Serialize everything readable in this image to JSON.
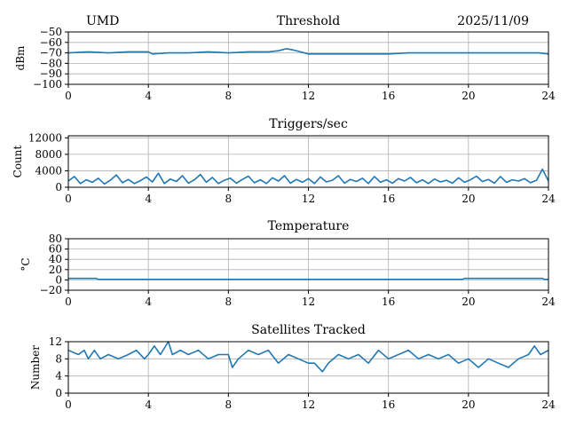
{
  "header": {
    "station": "UMD",
    "date": "2025/11/09"
  },
  "colors": {
    "series": "#1f77b4",
    "grid": "#b0b0b0",
    "axis": "#000000"
  },
  "chart_data": [
    {
      "type": "line",
      "title": "Threshold",
      "ylabel": "dBm",
      "xlim": [
        0,
        24
      ],
      "ylim": [
        -100,
        -50
      ],
      "xticks": [
        0,
        4,
        8,
        12,
        16,
        20,
        24
      ],
      "xtick_labels": [
        "0",
        "4",
        "8",
        "12",
        "16",
        "20",
        "24"
      ],
      "yticks": [
        -50,
        -60,
        -70,
        -80,
        -90,
        -100
      ],
      "ytick_labels": [
        "−50",
        "−60",
        "−70",
        "−80",
        "−90",
        "−100"
      ],
      "grid": true,
      "series": [
        {
          "x": [
            0,
            1,
            2,
            3,
            4,
            4.2,
            5,
            6,
            7,
            8,
            9,
            10,
            10.5,
            10.9,
            11.2,
            11.6,
            12,
            12.5,
            13,
            14,
            15,
            16,
            17,
            18,
            19,
            20,
            21,
            22,
            23,
            23.5,
            24
          ],
          "y": [
            -70,
            -69,
            -70,
            -69,
            -69,
            -71,
            -70,
            -70,
            -69,
            -70,
            -69,
            -69,
            -68,
            -66,
            -67,
            -69,
            -71,
            -71,
            -71,
            -71,
            -71,
            -71,
            -70,
            -70,
            -70,
            -70,
            -70,
            -70,
            -70,
            -70,
            -71
          ]
        }
      ]
    },
    {
      "type": "line",
      "title": "Triggers/sec",
      "ylabel": "Count",
      "xlim": [
        0,
        24
      ],
      "ylim": [
        0,
        12500
      ],
      "xticks": [
        0,
        4,
        8,
        12,
        16,
        20,
        24
      ],
      "xtick_labels": [
        "0",
        "4",
        "8",
        "12",
        "16",
        "20",
        "24"
      ],
      "yticks": [
        0,
        4000,
        8000,
        12000
      ],
      "ytick_labels": [
        "0",
        "4000",
        "8000",
        "12000"
      ],
      "grid": true,
      "series": [
        {
          "x": [
            0,
            0.3,
            0.6,
            0.9,
            1.2,
            1.5,
            1.8,
            2.1,
            2.4,
            2.7,
            3.0,
            3.3,
            3.6,
            3.9,
            4.2,
            4.5,
            4.8,
            5.1,
            5.4,
            5.7,
            6.0,
            6.3,
            6.6,
            6.9,
            7.2,
            7.5,
            7.8,
            8.1,
            8.4,
            8.7,
            9.0,
            9.3,
            9.6,
            9.9,
            10.2,
            10.5,
            10.8,
            11.1,
            11.4,
            11.7,
            12.0,
            12.3,
            12.6,
            12.9,
            13.2,
            13.5,
            13.8,
            14.1,
            14.4,
            14.7,
            15.0,
            15.3,
            15.6,
            15.9,
            16.2,
            16.5,
            16.8,
            17.1,
            17.4,
            17.7,
            18.0,
            18.3,
            18.6,
            18.9,
            19.2,
            19.5,
            19.8,
            20.1,
            20.4,
            20.7,
            21.0,
            21.3,
            21.6,
            21.9,
            22.2,
            22.5,
            22.8,
            23.1,
            23.4,
            23.7,
            24.0
          ],
          "y": [
            1500,
            2600,
            900,
            1800,
            1200,
            2200,
            800,
            1700,
            3000,
            1100,
            1900,
            900,
            1600,
            2500,
            1300,
            3400,
            900,
            2000,
            1400,
            2800,
            1000,
            1800,
            3100,
            1200,
            2400,
            900,
            1700,
            2200,
            1000,
            1900,
            2700,
            1100,
            1800,
            900,
            2300,
            1500,
            2800,
            1000,
            1900,
            1200,
            2100,
            900,
            2500,
            1300,
            1700,
            2800,
            1000,
            1900,
            1400,
            2200,
            900,
            2600,
            1200,
            1800,
            1000,
            2100,
            1500,
            2400,
            1100,
            1800,
            900,
            2000,
            1300,
            1700,
            1000,
            2300,
            1200,
            1800,
            2700,
            1400,
            1900,
            1000,
            2600,
            1200,
            1800,
            1500,
            2100,
            1100,
            1700,
            4400,
            1500
          ]
        }
      ]
    },
    {
      "type": "line",
      "title": "Temperature",
      "ylabel": "°C",
      "xlim": [
        0,
        24
      ],
      "ylim": [
        -20,
        80
      ],
      "xticks": [
        0,
        4,
        8,
        12,
        16,
        20,
        24
      ],
      "xtick_labels": [
        "0",
        "4",
        "8",
        "12",
        "16",
        "20",
        "24"
      ],
      "yticks": [
        -20,
        0,
        20,
        40,
        60,
        80
      ],
      "ytick_labels": [
        "−20",
        "0",
        "20",
        "40",
        "60",
        "80"
      ],
      "grid": true,
      "series": [
        {
          "x": [
            0,
            1.4,
            1.5,
            19.7,
            19.8,
            23.7,
            23.8,
            24
          ],
          "y": [
            3,
            3,
            1,
            1,
            3,
            3,
            1,
            1
          ]
        }
      ]
    },
    {
      "type": "line",
      "title": "Satellites Tracked",
      "ylabel": "Number",
      "xlim": [
        0,
        24
      ],
      "ylim": [
        0,
        12
      ],
      "xticks": [
        0,
        4,
        8,
        12,
        16,
        20,
        24
      ],
      "xtick_labels": [
        "0",
        "4",
        "8",
        "12",
        "16",
        "20",
        "24"
      ],
      "yticks": [
        0,
        4,
        8,
        12
      ],
      "ytick_labels": [
        "0",
        "4",
        "8",
        "12"
      ],
      "grid": true,
      "series": [
        {
          "x": [
            0,
            0.5,
            0.8,
            1.0,
            1.3,
            1.6,
            2.0,
            2.5,
            3.0,
            3.4,
            3.8,
            4.0,
            4.3,
            4.6,
            5.0,
            5.2,
            5.6,
            6.0,
            6.5,
            7.0,
            7.5,
            8.0,
            8.2,
            8.5,
            9.0,
            9.5,
            10.0,
            10.5,
            11.0,
            11.5,
            12.0,
            12.3,
            12.7,
            13.0,
            13.5,
            14.0,
            14.5,
            15.0,
            15.5,
            16.0,
            16.5,
            17.0,
            17.5,
            18.0,
            18.5,
            19.0,
            19.5,
            20.0,
            20.5,
            21.0,
            21.5,
            22.0,
            22.5,
            23.0,
            23.3,
            23.6,
            24.0
          ],
          "y": [
            10,
            9,
            10,
            8,
            10,
            8,
            9,
            8,
            9,
            10,
            8,
            9,
            11,
            9,
            12,
            9,
            10,
            9,
            10,
            8,
            9,
            9,
            6,
            8,
            10,
            9,
            10,
            7,
            9,
            8,
            7,
            7,
            5,
            7,
            9,
            8,
            9,
            7,
            10,
            8,
            9,
            10,
            8,
            9,
            8,
            9,
            7,
            8,
            6,
            8,
            7,
            6,
            8,
            9,
            11,
            9,
            10
          ]
        }
      ]
    }
  ]
}
